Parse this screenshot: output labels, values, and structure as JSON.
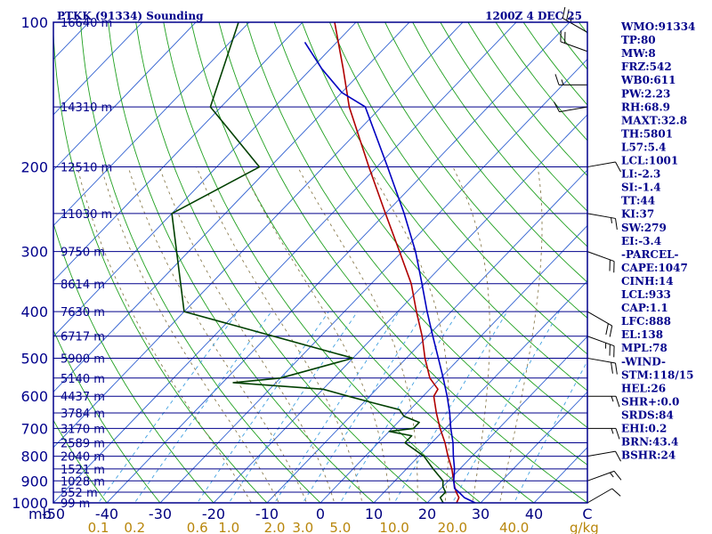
{
  "header": {
    "station": "PTKK (91334) Sounding",
    "time": "1200Z  4 DEC 25"
  },
  "colors": {
    "frame": "#00008b",
    "isobar": "#00008b",
    "isotherm": "#3060d0",
    "dry_adiabat": "#20a020",
    "moist_adiabat": "#8b7d50",
    "mixing_ratio": "#40a0e0",
    "temperature": "#b00000",
    "dewpoint": "#004000",
    "parcel": "#0000c0",
    "wind": "#000000"
  },
  "chart_data": {
    "type": "skew-t log-p",
    "pressure_axis": {
      "scale": "log",
      "range_hPa": [
        1000,
        100
      ],
      "ticks": [
        {
          "p": 100,
          "label": "100"
        },
        {
          "p": 200,
          "label": "200"
        },
        {
          "p": 300,
          "label": "300"
        },
        {
          "p": 400,
          "label": "400"
        },
        {
          "p": 500,
          "label": "500"
        },
        {
          "p": 600,
          "label": "600"
        },
        {
          "p": 700,
          "label": "700"
        },
        {
          "p": 800,
          "label": "800"
        },
        {
          "p": 900,
          "label": "900"
        },
        {
          "p": 1000,
          "label": "1000"
        }
      ]
    },
    "temperature_axis": {
      "unit_label": "mb",
      "range_C": [
        -50,
        50
      ],
      "ticks": [
        {
          "t": -50,
          "label": "-50"
        },
        {
          "t": -40,
          "label": "-40"
        },
        {
          "t": -30,
          "label": "-30"
        },
        {
          "t": -20,
          "label": "-20"
        },
        {
          "t": -10,
          "label": "-10"
        },
        {
          "t": 0,
          "label": "0"
        },
        {
          "t": 10,
          "label": "10"
        },
        {
          "t": 20,
          "label": "20"
        },
        {
          "t": 30,
          "label": "30"
        },
        {
          "t": 40,
          "label": "40"
        },
        {
          "t": 50,
          "label": "C"
        }
      ]
    },
    "mixing_ratio_axis": {
      "unit_label": "g/kg",
      "ticks": [
        {
          "w": 0.1,
          "label": "0.1"
        },
        {
          "w": 0.2,
          "label": "0.2"
        },
        {
          "w": 0.6,
          "label": "0.6"
        },
        {
          "w": 1.0,
          "label": "1.0"
        },
        {
          "w": 2.0,
          "label": "2.0"
        },
        {
          "w": 3.0,
          "label": "3.0"
        },
        {
          "w": 5.0,
          "label": "5.0"
        },
        {
          "w": 10.0,
          "label": "10.0"
        },
        {
          "w": 20.0,
          "label": "20.0"
        },
        {
          "w": 40.0,
          "label": "40.0"
        }
      ]
    },
    "heights": [
      {
        "p": 100,
        "label": "16640 m"
      },
      {
        "p": 150,
        "label": "14310 m"
      },
      {
        "p": 200,
        "label": "12510 m"
      },
      {
        "p": 250,
        "label": "11030 m"
      },
      {
        "p": 300,
        "label": "9750 m"
      },
      {
        "p": 350,
        "label": "8614 m"
      },
      {
        "p": 400,
        "label": "7630 m"
      },
      {
        "p": 450,
        "label": "6717 m"
      },
      {
        "p": 500,
        "label": "5900 m"
      },
      {
        "p": 550,
        "label": "5140 m"
      },
      {
        "p": 600,
        "label": "4437 m"
      },
      {
        "p": 650,
        "label": "3784 m"
      },
      {
        "p": 700,
        "label": "3170 m"
      },
      {
        "p": 750,
        "label": "2589 m"
      },
      {
        "p": 800,
        "label": "2040 m"
      },
      {
        "p": 850,
        "label": "1521 m"
      },
      {
        "p": 900,
        "label": "1028 m"
      },
      {
        "p": 950,
        "label": "552 m"
      },
      {
        "p": 1000,
        "label": "99 m"
      }
    ],
    "series": [
      {
        "key": "temperature",
        "points": [
          {
            "p": 1000,
            "t": 25.5
          },
          {
            "p": 975,
            "t": 25.0
          },
          {
            "p": 950,
            "t": 23.5
          },
          {
            "p": 925,
            "t": 22.2
          },
          {
            "p": 900,
            "t": 21.0
          },
          {
            "p": 850,
            "t": 18.5
          },
          {
            "p": 800,
            "t": 15.5
          },
          {
            "p": 750,
            "t": 12.5
          },
          {
            "p": 700,
            "t": 9.0
          },
          {
            "p": 650,
            "t": 5.5
          },
          {
            "p": 600,
            "t": 2.0
          },
          {
            "p": 580,
            "t": 1.5
          },
          {
            "p": 550,
            "t": -2.0
          },
          {
            "p": 500,
            "t": -6.5
          },
          {
            "p": 450,
            "t": -11.0
          },
          {
            "p": 400,
            "t": -16.5
          },
          {
            "p": 350,
            "t": -22.5
          },
          {
            "p": 300,
            "t": -30.5
          },
          {
            "p": 250,
            "t": -40.0
          },
          {
            "p": 200,
            "t": -51.5
          },
          {
            "p": 150,
            "t": -66.0
          },
          {
            "p": 125,
            "t": -74.0
          },
          {
            "p": 100,
            "t": -84.0
          }
        ]
      },
      {
        "key": "dewpoint",
        "points": [
          {
            "p": 1000,
            "t": 23.0
          },
          {
            "p": 975,
            "t": 21.5
          },
          {
            "p": 950,
            "t": 21.5
          },
          {
            "p": 925,
            "t": 20.0
          },
          {
            "p": 900,
            "t": 19.0
          },
          {
            "p": 850,
            "t": 15.0
          },
          {
            "p": 800,
            "t": 11.0
          },
          {
            "p": 750,
            "t": 5.0
          },
          {
            "p": 725,
            "t": 5.0
          },
          {
            "p": 710,
            "t": 0.0
          },
          {
            "p": 700,
            "t": 4.0
          },
          {
            "p": 680,
            "t": 4.0
          },
          {
            "p": 660,
            "t": 0.0
          },
          {
            "p": 640,
            "t": -2.0
          },
          {
            "p": 620,
            "t": -8.0
          },
          {
            "p": 600,
            "t": -14.0
          },
          {
            "p": 580,
            "t": -20.0
          },
          {
            "p": 562,
            "t": -38.0
          },
          {
            "p": 550,
            "t": -30.0
          },
          {
            "p": 500,
            "t": -20.0
          },
          {
            "p": 400,
            "t": -60.0
          },
          {
            "p": 250,
            "t": -80.0
          },
          {
            "p": 200,
            "t": -72.0
          },
          {
            "p": 150,
            "t": -92.0
          },
          {
            "p": 100,
            "t": -102.0
          }
        ]
      },
      {
        "key": "parcel",
        "points": [
          {
            "p": 1000,
            "t": 29.0
          },
          {
            "p": 975,
            "t": 26.0
          },
          {
            "p": 950,
            "t": 24.0
          },
          {
            "p": 933,
            "t": 22.5
          },
          {
            "p": 900,
            "t": 21.0
          },
          {
            "p": 850,
            "t": 19.0
          },
          {
            "p": 800,
            "t": 16.5
          },
          {
            "p": 750,
            "t": 14.0
          },
          {
            "p": 700,
            "t": 11.0
          },
          {
            "p": 650,
            "t": 8.0
          },
          {
            "p": 600,
            "t": 4.5
          },
          {
            "p": 550,
            "t": 0.5
          },
          {
            "p": 500,
            "t": -4.0
          },
          {
            "p": 450,
            "t": -9.0
          },
          {
            "p": 400,
            "t": -14.5
          },
          {
            "p": 350,
            "t": -20.5
          },
          {
            "p": 300,
            "t": -27.5
          },
          {
            "p": 250,
            "t": -36.5
          },
          {
            "p": 200,
            "t": -48.0
          },
          {
            "p": 150,
            "t": -63.0
          },
          {
            "p": 140,
            "t": -70.0
          },
          {
            "p": 125,
            "t": -78.0
          },
          {
            "p": 110,
            "t": -86.0
          }
        ]
      }
    ],
    "wind_profile": [
      {
        "p": 105,
        "dir": 300,
        "spd": 25
      },
      {
        "p": 115,
        "dir": 290,
        "spd": 20
      },
      {
        "p": 135,
        "dir": 270,
        "spd": 15
      },
      {
        "p": 150,
        "dir": 260,
        "spd": 10
      },
      {
        "p": 200,
        "dir": 80,
        "spd": 10
      },
      {
        "p": 250,
        "dir": 100,
        "spd": 15
      },
      {
        "p": 300,
        "dir": 110,
        "spd": 20
      },
      {
        "p": 400,
        "dir": 120,
        "spd": 20
      },
      {
        "p": 450,
        "dir": 110,
        "spd": 25
      },
      {
        "p": 500,
        "dir": 100,
        "spd": 20
      },
      {
        "p": 600,
        "dir": 90,
        "spd": 15
      },
      {
        "p": 700,
        "dir": 90,
        "spd": 15
      },
      {
        "p": 800,
        "dir": 80,
        "spd": 10
      },
      {
        "p": 900,
        "dir": 70,
        "spd": 15
      },
      {
        "p": 1000,
        "dir": 60,
        "spd": 10
      }
    ]
  },
  "indices": [
    "WMO:91334",
    "TP:80",
    "MW:8",
    "FRZ:542",
    "WB0:611",
    "PW:2.23",
    "RH:68.9",
    "MAXT:32.8",
    "TH:5801",
    "L57:5.4",
    "LCL:1001",
    "LI:-2.3",
    "SI:-1.4",
    "TT:44",
    "KI:37",
    "SW:279",
    "EI:-3.4",
    "-PARCEL-",
    "CAPE:1047",
    "CINH:14",
    "LCL:933",
    "CAP:1.1",
    "LFC:888",
    "EL:138",
    "MPL:78",
    "-WIND-",
    "STM:118/15",
    "HEL:26",
    "SHR+:0.0",
    "SRDS:84",
    "EHI:0.2",
    "BRN:43.4",
    "BSHR:24"
  ]
}
